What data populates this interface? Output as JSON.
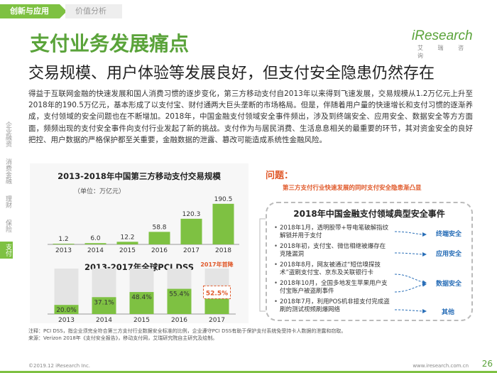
{
  "nav": {
    "active_tab": "创新与应用",
    "inactive_tab": "价值分析"
  },
  "logo": {
    "main": "iResearch",
    "sub": "艾 瑞 咨 询"
  },
  "title": "支付业务发展痛点",
  "subtitle": "交易规模、用户体验等发展良好，但支付安全隐患仍然存在",
  "body": "得益于互联网金融的快速发展和国人消费习惯的逐步变化，第三方移动支付自2013年以来得到飞速发展，交易规模从1.2万亿元上升至2018年的190.5万亿元，基本形成了以支付宝、财付通两大巨头垄断的市场格局。但是，伴随着用户量的快速增长和支付习惯的逐渐养成，支付领域的安全问题也在不断增加。2018年，中国金融支付领域安全事件频出，涉及到终端安全、应用安全、数据安全等方方面面，频频出现的支付安全事件向支付行业发起了新的挑战。支付作为与居民消费、生活息息相关的最重要的环节，其对资金安全的良好把控、用户数据的严格保护都至关重要，金融数据的泄露、篡改可能造成系统性金融风险。",
  "sidenav": [
    {
      "label": "企业融资",
      "active": false
    },
    {
      "label": "消费金融",
      "active": false
    },
    {
      "label": "理财",
      "active": false
    },
    {
      "label": "保险",
      "active": false
    },
    {
      "label": "支付",
      "active": true
    }
  ],
  "chart_data": [
    {
      "type": "bar",
      "title": "2013-2018年中国第三方移动支付交易规模",
      "unit": "（单位：万亿元）",
      "categories": [
        "2013",
        "2014",
        "2015",
        "2016",
        "2017",
        "2018"
      ],
      "values": [
        1.2,
        6.0,
        12.2,
        58.8,
        120.3,
        190.5
      ],
      "value_labels": [
        "1.2",
        "6.0",
        "12.2",
        "58.8",
        "120.3",
        "190.5"
      ],
      "ylim": [
        0,
        200
      ],
      "color": "#7ec142"
    },
    {
      "type": "bar",
      "title": "2013-2017年全球PCI DSS",
      "categories": [
        "2013",
        "2014",
        "2015",
        "2016",
        "2017"
      ],
      "values": [
        20.0,
        37.1,
        48.4,
        55.4,
        52.5
      ],
      "value_labels": [
        "20.0%",
        "37.1%",
        "48.4%",
        "55.4%",
        "52.5%"
      ],
      "ylim": [
        0,
        100
      ],
      "color": "#7ec142",
      "highlight_color": "#e0592a",
      "annotation": "2017年首降"
    }
  ],
  "right": {
    "question": "问题：",
    "question_sub": "第三方支付行业快速发展的同时支付安全隐患渐凸显",
    "card_title": "2018年中国金融支付领域典型安全事件",
    "events": [
      "2018年1月，透明股带+导电笔破解指纹解锁并用于支付",
      "2018年初，支付宝、微信相继被爆存在克隆漏洞",
      "2018年8月，网友被通过“短信嗅探技术”盗刷支付宝、京东及关联银行卡",
      "2018年10月，全国多地发生苹果用户支付宝账户被盗刷事件",
      "2018年7月，利用POS机非接支付完成盗刷的测试视频刷爆网络"
    ],
    "tags": [
      "终端安全",
      "应用安全",
      "数据安全",
      "其他"
    ]
  },
  "footnote": "注释：PCI DSS，指企业须完全符合第三方支付行业数据安全标准的比例，企业遵守PCI DSS有助于保护支付系统免受持卡人数据的泄露和窃取。\n来源：Verizon 2018年《支付安全报告》，移动支付网，艾瑞研究院自主研究及绘制。",
  "footer_left": "©2019.12 iResearch Inc.",
  "footer_right": "www.iresearch.com.cn",
  "page_number": "26"
}
